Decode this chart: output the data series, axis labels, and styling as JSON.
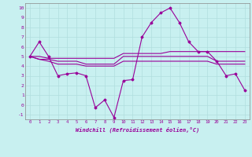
{
  "xlabel": "Windchill (Refroidissement éolien,°C)",
  "bg_color": "#c8f0f0",
  "grid_color": "#b0dede",
  "line_color": "#990099",
  "xlim": [
    -0.5,
    23.5
  ],
  "ylim": [
    -1.5,
    10.5
  ],
  "yticks": [
    -1,
    0,
    1,
    2,
    3,
    4,
    5,
    6,
    7,
    8,
    9,
    10
  ],
  "xticks": [
    0,
    1,
    2,
    3,
    4,
    5,
    6,
    7,
    8,
    9,
    10,
    11,
    12,
    13,
    14,
    15,
    16,
    17,
    18,
    19,
    20,
    21,
    22,
    23
  ],
  "lines": [
    {
      "x": [
        0,
        1,
        2,
        3,
        4,
        5,
        6,
        7,
        8,
        9,
        10,
        11,
        12,
        13,
        14,
        15,
        16,
        17,
        18,
        19,
        20,
        21,
        22,
        23
      ],
      "y": [
        5.0,
        6.5,
        5.0,
        3.0,
        3.2,
        3.3,
        3.0,
        -0.3,
        0.5,
        -1.3,
        2.5,
        2.6,
        7.0,
        8.5,
        9.5,
        10.0,
        8.5,
        6.5,
        5.5,
        5.5,
        4.5,
        3.0,
        3.2,
        1.5
      ],
      "marker": "D",
      "markersize": 2.0
    },
    {
      "x": [
        0,
        1,
        2,
        3,
        4,
        5,
        6,
        7,
        8,
        9,
        10,
        11,
        12,
        13,
        14,
        15,
        16,
        17,
        18,
        19,
        20,
        21,
        22,
        23
      ],
      "y": [
        5.0,
        5.0,
        4.8,
        4.8,
        4.8,
        4.8,
        4.8,
        4.8,
        4.8,
        4.8,
        5.3,
        5.3,
        5.3,
        5.3,
        5.3,
        5.5,
        5.5,
        5.5,
        5.5,
        5.5,
        5.5,
        5.5,
        5.5,
        5.5
      ],
      "marker": null,
      "markersize": 0
    },
    {
      "x": [
        0,
        1,
        2,
        3,
        4,
        5,
        6,
        7,
        8,
        9,
        10,
        11,
        12,
        13,
        14,
        15,
        16,
        17,
        18,
        19,
        20,
        21,
        22,
        23
      ],
      "y": [
        5.0,
        4.7,
        4.7,
        4.5,
        4.5,
        4.5,
        4.2,
        4.2,
        4.2,
        4.2,
        5.0,
        5.0,
        5.0,
        5.0,
        5.0,
        5.0,
        5.0,
        5.0,
        5.0,
        5.0,
        4.5,
        4.5,
        4.5,
        4.5
      ],
      "marker": null,
      "markersize": 0
    },
    {
      "x": [
        0,
        1,
        2,
        3,
        4,
        5,
        6,
        7,
        8,
        9,
        10,
        11,
        12,
        13,
        14,
        15,
        16,
        17,
        18,
        19,
        20,
        21,
        22,
        23
      ],
      "y": [
        5.0,
        4.7,
        4.5,
        4.2,
        4.2,
        4.2,
        4.0,
        4.0,
        4.0,
        4.0,
        4.5,
        4.5,
        4.5,
        4.5,
        4.5,
        4.5,
        4.5,
        4.5,
        4.5,
        4.5,
        4.2,
        4.2,
        4.2,
        4.2
      ],
      "marker": null,
      "markersize": 0
    }
  ]
}
